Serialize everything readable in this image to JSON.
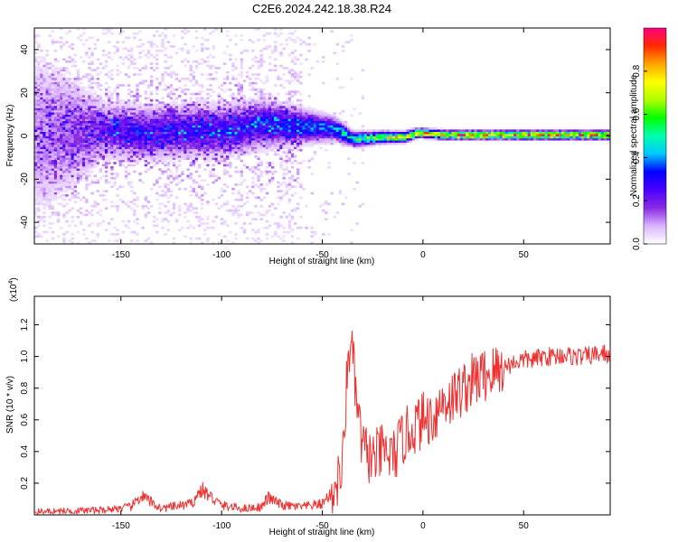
{
  "title": "C2E6.2024.242.18.38.R24",
  "top_panel": {
    "xlabel": "Height of straight line (km)",
    "ylabel": "Frequency (Hz)",
    "colorbar_label": "Normalized spectral amplitude",
    "colorbar_colors": [
      "#ffffff",
      "#d9b3ff",
      "#8a2be2",
      "#4b00ff",
      "#0000ff",
      "#00c8ff",
      "#00ffb0",
      "#00ff00",
      "#b0ff00",
      "#ffff00",
      "#ffa500",
      "#ff2a00",
      "#ff0080"
    ],
    "colorbar_ticks": [
      "0.0",
      "0.2",
      "0.4",
      "0.6",
      "0.8"
    ],
    "xticks": [
      "-150",
      "-100",
      "-50",
      "0",
      "50"
    ],
    "yticks": [
      "40",
      "20",
      "0",
      "-20",
      "-40"
    ]
  },
  "bottom_panel": {
    "xlabel": "Height of straight line (km)",
    "ylabel": "SNR (10 * v/v)",
    "multiplier": "(x10",
    "multiplier_exp": "4",
    "multiplier_close": ")",
    "line_color": "#ee3030",
    "xticks": [
      "-150",
      "-100",
      "-50",
      "0",
      "50"
    ],
    "yticks": [
      "1.2",
      "1.0",
      "0.8",
      "0.6",
      "0.4",
      "0.2"
    ]
  },
  "chart_data": [
    {
      "type": "heatmap",
      "x_range": [
        -193,
        93
      ],
      "y_range": [
        -50,
        50
      ],
      "z_range": [
        0,
        1
      ],
      "ridge_profile": [
        {
          "x": -193,
          "f": 0,
          "halfwidth": 30,
          "amp": 0.12
        },
        {
          "x": -160,
          "f": 2,
          "halfwidth": 10,
          "amp": 0.22
        },
        {
          "x": -140,
          "f": 1,
          "halfwidth": 9,
          "amp": 0.28
        },
        {
          "x": -120,
          "f": 2,
          "halfwidth": 9,
          "amp": 0.3
        },
        {
          "x": -100,
          "f": 2,
          "halfwidth": 9,
          "amp": 0.3
        },
        {
          "x": -80,
          "f": 5,
          "halfwidth": 8,
          "amp": 0.33
        },
        {
          "x": -60,
          "f": 4,
          "halfwidth": 6,
          "amp": 0.38
        },
        {
          "x": -45,
          "f": 3,
          "halfwidth": 4,
          "amp": 0.45
        },
        {
          "x": -35,
          "f": -2,
          "halfwidth": 2.5,
          "amp": 0.6
        },
        {
          "x": -20,
          "f": -1,
          "halfwidth": 2,
          "amp": 0.75
        },
        {
          "x": -10,
          "f": -1,
          "halfwidth": 1.8,
          "amp": 0.82
        },
        {
          "x": -3,
          "f": 1,
          "halfwidth": 1.5,
          "amp": 0.9
        },
        {
          "x": 10,
          "f": 0,
          "halfwidth": 1.5,
          "amp": 0.95
        },
        {
          "x": 40,
          "f": 0,
          "halfwidth": 1.5,
          "amp": 0.95
        },
        {
          "x": 93,
          "f": 0,
          "halfwidth": 1.5,
          "amp": 0.93
        }
      ]
    },
    {
      "type": "line",
      "y_unit": "x10^4",
      "xlim": [
        -193,
        93
      ],
      "ylim": [
        0,
        1.38
      ],
      "x": [
        -193,
        -160,
        -145,
        -140,
        -130,
        -115,
        -110,
        -100,
        -90,
        -80,
        -77,
        -70,
        -60,
        -50,
        -45,
        -40,
        -38,
        -36,
        -34,
        -32,
        -30,
        -25,
        -20,
        -15,
        -10,
        -5,
        0,
        5,
        10,
        15,
        20,
        25,
        30,
        35,
        40,
        45,
        50,
        55,
        60,
        65,
        70,
        75,
        80,
        85,
        90,
        93
      ],
      "y": [
        0.02,
        0.03,
        0.05,
        0.12,
        0.04,
        0.07,
        0.16,
        0.06,
        0.04,
        0.05,
        0.11,
        0.06,
        0.05,
        0.07,
        0.15,
        0.28,
        0.8,
        1.15,
        0.85,
        0.6,
        0.42,
        0.35,
        0.4,
        0.36,
        0.48,
        0.55,
        0.6,
        0.62,
        0.72,
        0.74,
        0.8,
        0.85,
        0.88,
        0.9,
        0.93,
        0.96,
        0.98,
        0.98,
        1.0,
        1.0,
        1.01,
        1.0,
        1.0,
        1.01,
        1.02,
        1.0
      ]
    }
  ]
}
